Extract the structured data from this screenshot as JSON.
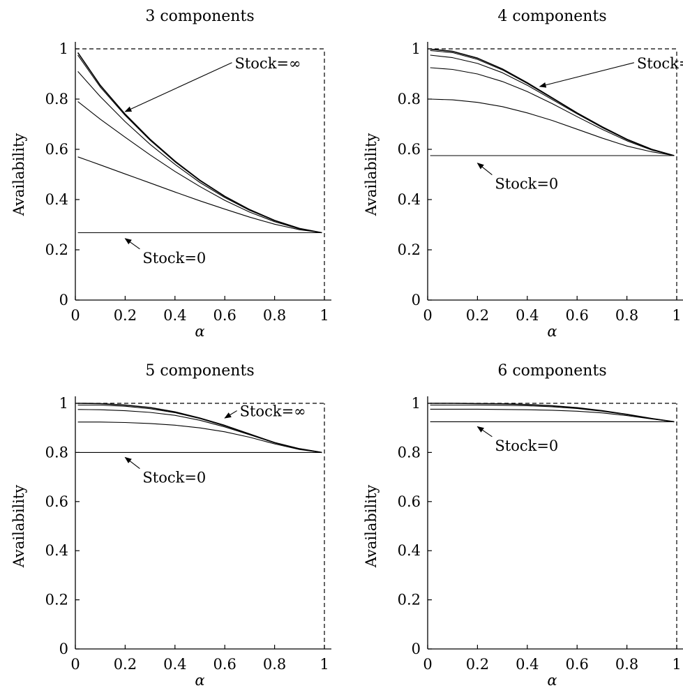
{
  "chart_data": [
    {
      "type": "line",
      "title": "3 components",
      "xlabel": "α",
      "ylabel": "Availability",
      "xlim": [
        0,
        1
      ],
      "ylim": [
        0,
        1
      ],
      "xticks": [
        "0",
        "0.2",
        "0.4",
        "0.6",
        "0.8",
        "1"
      ],
      "yticks": [
        "0",
        "0.2",
        "0.4",
        "0.6",
        "0.8",
        "1"
      ],
      "reference_lines": {
        "y": 1,
        "x": 1,
        "style": "dashed"
      },
      "series": [
        {
          "x": [
            0.01,
            0.1,
            0.2,
            0.3,
            0.4,
            0.5,
            0.6,
            0.7,
            0.8,
            0.9,
            0.99
          ],
          "y": [
            0.985,
            0.855,
            0.74,
            0.64,
            0.553,
            0.477,
            0.413,
            0.36,
            0.317,
            0.285,
            0.268
          ]
        },
        {
          "x": [
            0.01,
            0.1,
            0.2,
            0.3,
            0.4,
            0.5,
            0.6,
            0.7,
            0.8,
            0.9,
            0.99
          ],
          "y": [
            0.975,
            0.848,
            0.735,
            0.636,
            0.55,
            0.475,
            0.412,
            0.36,
            0.317,
            0.285,
            0.268
          ]
        },
        {
          "x": [
            0.01,
            0.1,
            0.2,
            0.3,
            0.4,
            0.5,
            0.6,
            0.7,
            0.8,
            0.9,
            0.99
          ],
          "y": [
            0.91,
            0.81,
            0.71,
            0.62,
            0.54,
            0.468,
            0.408,
            0.357,
            0.316,
            0.284,
            0.268
          ]
        },
        {
          "x": [
            0.01,
            0.1,
            0.2,
            0.3,
            0.4,
            0.5,
            0.6,
            0.7,
            0.8,
            0.9,
            0.99
          ],
          "y": [
            0.79,
            0.72,
            0.648,
            0.578,
            0.512,
            0.452,
            0.397,
            0.35,
            0.312,
            0.283,
            0.268
          ]
        },
        {
          "x": [
            0.01,
            0.1,
            0.2,
            0.3,
            0.4,
            0.5,
            0.6,
            0.7,
            0.8,
            0.9,
            0.99
          ],
          "y": [
            0.57,
            0.538,
            0.502,
            0.466,
            0.43,
            0.395,
            0.362,
            0.33,
            0.302,
            0.28,
            0.268
          ]
        },
        {
          "x": [
            0.01,
            0.99
          ],
          "y": [
            0.268,
            0.268
          ]
        }
      ],
      "annotations": [
        {
          "text": "Stock=∞",
          "x": 0.64,
          "y": 0.945,
          "target": [
            0.2,
            0.75
          ]
        },
        {
          "text": "Stock=0",
          "x": 0.27,
          "y": 0.17,
          "target": [
            0.2,
            0.245
          ]
        }
      ]
    },
    {
      "type": "line",
      "title": "4 components",
      "xlabel": "α",
      "ylabel": "Availability",
      "xlim": [
        0,
        1
      ],
      "ylim": [
        0,
        1
      ],
      "xticks": [
        "0",
        "0.2",
        "0.4",
        "0.6",
        "0.8",
        "1"
      ],
      "yticks": [
        "0",
        "0.2",
        "0.4",
        "0.6",
        "0.8",
        "1"
      ],
      "reference_lines": {
        "y": 1,
        "x": 1,
        "style": "dashed"
      },
      "series": [
        {
          "x": [
            0.01,
            0.1,
            0.2,
            0.3,
            0.4,
            0.5,
            0.6,
            0.7,
            0.8,
            0.9,
            0.99
          ],
          "y": [
            0.999,
            0.99,
            0.963,
            0.92,
            0.865,
            0.805,
            0.745,
            0.69,
            0.64,
            0.6,
            0.575
          ]
        },
        {
          "x": [
            0.01,
            0.1,
            0.2,
            0.3,
            0.4,
            0.5,
            0.6,
            0.7,
            0.8,
            0.9,
            0.99
          ],
          "y": [
            0.993,
            0.985,
            0.958,
            0.916,
            0.862,
            0.803,
            0.744,
            0.689,
            0.64,
            0.6,
            0.575
          ]
        },
        {
          "x": [
            0.01,
            0.1,
            0.2,
            0.3,
            0.4,
            0.5,
            0.6,
            0.7,
            0.8,
            0.9,
            0.99
          ],
          "y": [
            0.975,
            0.965,
            0.942,
            0.905,
            0.855,
            0.798,
            0.741,
            0.687,
            0.638,
            0.599,
            0.575
          ]
        },
        {
          "x": [
            0.01,
            0.1,
            0.2,
            0.3,
            0.4,
            0.5,
            0.6,
            0.7,
            0.8,
            0.9,
            0.99
          ],
          "y": [
            0.925,
            0.918,
            0.9,
            0.87,
            0.83,
            0.782,
            0.73,
            0.68,
            0.634,
            0.597,
            0.575
          ]
        },
        {
          "x": [
            0.01,
            0.1,
            0.2,
            0.3,
            0.4,
            0.5,
            0.6,
            0.7,
            0.8,
            0.9,
            0.99
          ],
          "y": [
            0.8,
            0.797,
            0.787,
            0.77,
            0.745,
            0.715,
            0.68,
            0.645,
            0.613,
            0.59,
            0.575
          ]
        },
        {
          "x": [
            0.01,
            0.99
          ],
          "y": [
            0.575,
            0.575
          ]
        }
      ],
      "annotations": [
        {
          "text": "Stock=∞",
          "x": 0.84,
          "y": 0.945,
          "target": [
            0.45,
            0.85
          ]
        },
        {
          "text": "Stock=0",
          "x": 0.27,
          "y": 0.465,
          "target": [
            0.2,
            0.545
          ]
        }
      ]
    },
    {
      "type": "line",
      "title": "5 components",
      "xlabel": "α",
      "ylabel": "Availability",
      "xlim": [
        0,
        1
      ],
      "ylim": [
        0,
        1
      ],
      "xticks": [
        "0",
        "0.2",
        "0.4",
        "0.6",
        "0.8",
        "1"
      ],
      "yticks": [
        "0",
        "0.2",
        "0.4",
        "0.6",
        "0.8",
        "1"
      ],
      "reference_lines": {
        "y": 1,
        "x": 1,
        "style": "dashed"
      },
      "series": [
        {
          "x": [
            0.01,
            0.1,
            0.2,
            0.3,
            0.4,
            0.5,
            0.6,
            0.7,
            0.8,
            0.9,
            0.99
          ],
          "y": [
            1.0,
            0.999,
            0.993,
            0.983,
            0.965,
            0.94,
            0.91,
            0.875,
            0.84,
            0.815,
            0.8
          ]
        },
        {
          "x": [
            0.01,
            0.1,
            0.2,
            0.3,
            0.4,
            0.5,
            0.6,
            0.7,
            0.8,
            0.9,
            0.99
          ],
          "y": [
            0.993,
            0.993,
            0.988,
            0.978,
            0.962,
            0.938,
            0.908,
            0.874,
            0.84,
            0.815,
            0.8
          ]
        },
        {
          "x": [
            0.01,
            0.1,
            0.2,
            0.3,
            0.4,
            0.5,
            0.6,
            0.7,
            0.8,
            0.9,
            0.99
          ],
          "y": [
            0.975,
            0.974,
            0.97,
            0.963,
            0.951,
            0.931,
            0.904,
            0.872,
            0.839,
            0.814,
            0.8
          ]
        },
        {
          "x": [
            0.01,
            0.1,
            0.2,
            0.3,
            0.4,
            0.5,
            0.6,
            0.7,
            0.8,
            0.9,
            0.99
          ],
          "y": [
            0.924,
            0.924,
            0.922,
            0.918,
            0.911,
            0.9,
            0.884,
            0.862,
            0.835,
            0.812,
            0.8
          ]
        },
        {
          "x": [
            0.01,
            0.99
          ],
          "y": [
            0.8,
            0.8
          ]
        }
      ],
      "annotations": [
        {
          "text": "Stock=∞",
          "x": 0.66,
          "y": 0.97,
          "target": [
            0.6,
            0.94
          ]
        },
        {
          "text": "Stock=0",
          "x": 0.27,
          "y": 0.7,
          "target": [
            0.2,
            0.78
          ]
        }
      ]
    },
    {
      "type": "line",
      "title": "6 components",
      "xlabel": "α",
      "ylabel": "Availability",
      "xlim": [
        0,
        1
      ],
      "ylim": [
        0,
        1
      ],
      "xticks": [
        "0",
        "0.2",
        "0.4",
        "0.6",
        "0.8",
        "1"
      ],
      "yticks": [
        "0",
        "0.2",
        "0.4",
        "0.6",
        "0.8",
        "1"
      ],
      "reference_lines": {
        "y": 1,
        "x": 1,
        "style": "dashed"
      },
      "series": [
        {
          "x": [
            0.01,
            0.1,
            0.2,
            0.3,
            0.4,
            0.5,
            0.6,
            0.7,
            0.8,
            0.9,
            0.99
          ],
          "y": [
            1.0,
            1.0,
            0.999,
            0.998,
            0.995,
            0.99,
            0.982,
            0.97,
            0.955,
            0.938,
            0.925
          ]
        },
        {
          "x": [
            0.01,
            0.1,
            0.2,
            0.3,
            0.4,
            0.5,
            0.6,
            0.7,
            0.8,
            0.9,
            0.99
          ],
          "y": [
            0.993,
            0.993,
            0.993,
            0.992,
            0.99,
            0.986,
            0.979,
            0.968,
            0.954,
            0.938,
            0.925
          ]
        },
        {
          "x": [
            0.01,
            0.1,
            0.2,
            0.3,
            0.4,
            0.5,
            0.6,
            0.7,
            0.8,
            0.9,
            0.99
          ],
          "y": [
            0.976,
            0.976,
            0.976,
            0.975,
            0.974,
            0.972,
            0.968,
            0.961,
            0.95,
            0.936,
            0.925
          ]
        },
        {
          "x": [
            0.01,
            0.99
          ],
          "y": [
            0.925,
            0.925
          ]
        }
      ],
      "annotations": [
        {
          "text": "Stock=0",
          "x": 0.27,
          "y": 0.83,
          "target": [
            0.2,
            0.905
          ]
        }
      ]
    }
  ]
}
